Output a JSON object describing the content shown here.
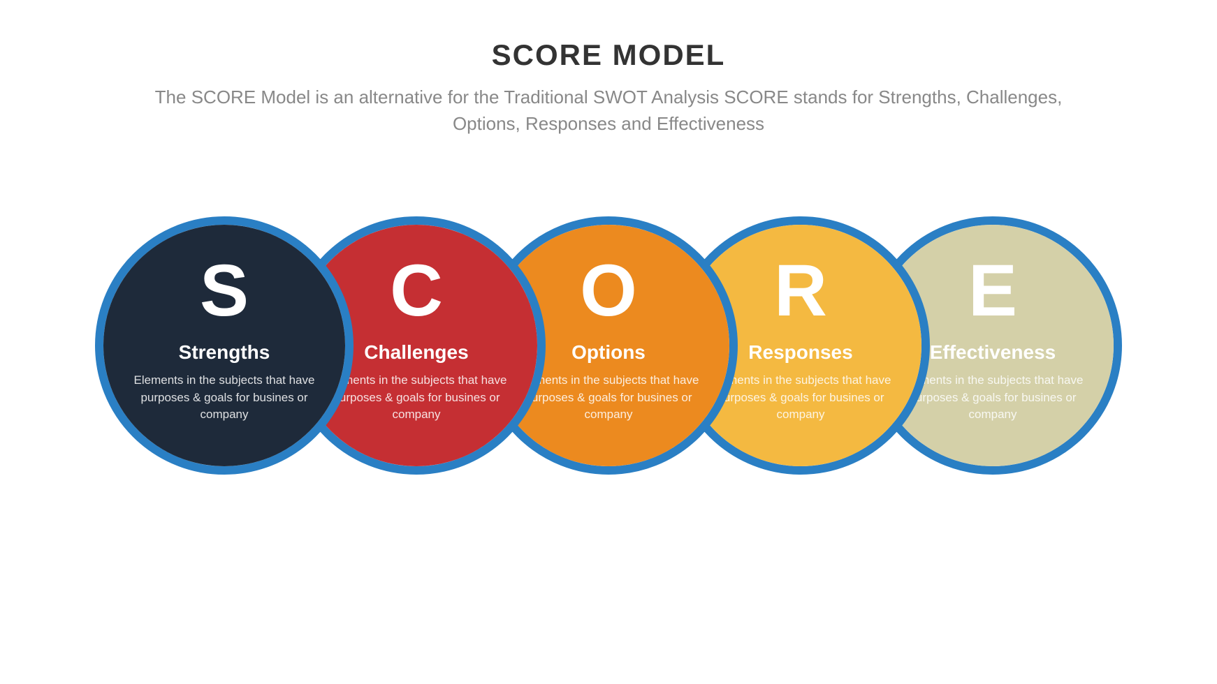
{
  "title": "SCORE MODEL",
  "subtitle": "The SCORE Model is an alternative for the Traditional SWOT Analysis SCORE stands for Strengths, Challenges, Options, Responses and Effectiveness",
  "title_color": "#333333",
  "subtitle_color": "#888888",
  "background_color": "#ffffff",
  "border_color": "#2a7fc4",
  "border_width": 12,
  "circle_outer_diameter": 370,
  "circle_inner_diameter": 346,
  "circle_overlap": 95,
  "letter_fontsize": 105,
  "label_fontsize": 28,
  "desc_fontsize": 17,
  "text_color": "#ffffff",
  "items": [
    {
      "letter": "S",
      "label": "Strengths",
      "desc": "Elements in the subjects that have purposes & goals for busines or company",
      "fill": "#1e2a3a",
      "z": 5
    },
    {
      "letter": "C",
      "label": "Challenges",
      "desc": "Elements in the subjects that have purposes & goals for busines or company",
      "fill": "#c52f33",
      "z": 4
    },
    {
      "letter": "O",
      "label": "Options",
      "desc": "Elements in the subjects that have purposes & goals for busines or company",
      "fill": "#ec8a1f",
      "z": 3
    },
    {
      "letter": "R",
      "label": "Responses",
      "desc": "Elements in the subjects that have purposes & goals for busines or company",
      "fill": "#f4b941",
      "z": 2
    },
    {
      "letter": "E",
      "label": "Effectiveness",
      "desc": "Elements in the subjects that have purposes & goals for busines or company",
      "fill": "#d4d0a8",
      "z": 1
    }
  ]
}
